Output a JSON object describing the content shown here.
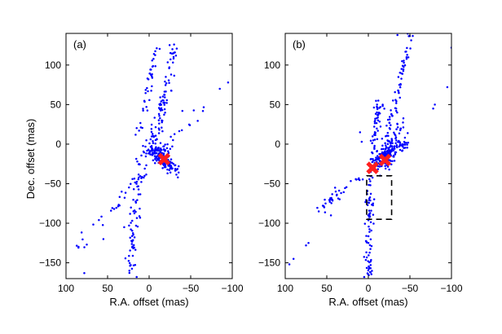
{
  "figure": {
    "xlabel": "R.A. offset (mas)",
    "ylabel": "Dec. offset (mas)"
  },
  "chart_data": [
    {
      "type": "scatter",
      "panel_label": "(a)",
      "xlabel": "R.A. offset (mas)",
      "ylabel": "Dec. offset (mas)",
      "xlim": [
        100,
        -100
      ],
      "ylim": [
        -170,
        140
      ],
      "xticks": [
        100,
        50,
        0,
        -50,
        -100
      ],
      "yticks": [
        100,
        50,
        0,
        -50,
        -100,
        -150
      ],
      "point_color": "#0000ff",
      "marker_color": "#ff1f1f",
      "markers": [
        {
          "x": -18,
          "y": -19
        }
      ],
      "box": null,
      "clusters": [
        {
          "x0": 14,
          "y0": 8,
          "x1": -10,
          "y1": 125,
          "n": 38,
          "spread": 4.5
        },
        {
          "x0": -5,
          "y0": -10,
          "x1": -30,
          "y1": 122,
          "n": 50,
          "spread": 6
        },
        {
          "x0": 10,
          "y0": -15,
          "x1": 25,
          "y1": -165,
          "n": 70,
          "spread": 6
        },
        {
          "x0": 5,
          "y0": -5,
          "x1": -35,
          "y1": -35,
          "n": 70,
          "spread": 4
        },
        {
          "x0": 90,
          "y0": -135,
          "x1": -70,
          "y1": 55,
          "n": 60,
          "spread": 5
        },
        {
          "x0": -5,
          "y0": -5,
          "x1": -25,
          "y1": -25,
          "n": 80,
          "spread": 6
        },
        {
          "x0": 0,
          "y0": 0,
          "x1": -20,
          "y1": 60,
          "n": 40,
          "spread": 8
        }
      ],
      "extra_points": [
        {
          "x": 2,
          "y": 83
        },
        {
          "x": -95,
          "y": 78
        },
        {
          "x": -85,
          "y": 70
        },
        {
          "x": 78,
          "y": -163
        },
        {
          "x": 75,
          "y": -127
        },
        {
          "x": 55,
          "y": -120
        },
        {
          "x": 15,
          "y": -168
        },
        {
          "x": 30,
          "y": -105
        },
        {
          "x": -40,
          "y": 42
        },
        {
          "x": -30,
          "y": 126
        },
        {
          "x": -28,
          "y": 120
        }
      ]
    },
    {
      "type": "scatter",
      "panel_label": "(b)",
      "xlabel": "R.A. offset (mas)",
      "ylabel": "",
      "xlim": [
        100,
        -100
      ],
      "ylim": [
        -170,
        140
      ],
      "xticks": [
        100,
        50,
        0,
        -50,
        -100
      ],
      "yticks": [
        100,
        50,
        0,
        -50,
        -100,
        -150
      ],
      "point_color": "#0000ff",
      "marker_color": "#ff1f1f",
      "markers": [
        {
          "x": -5,
          "y": -30
        },
        {
          "x": -20,
          "y": -20
        }
      ],
      "box": {
        "x0": 2,
        "x1": -28,
        "y0": -40,
        "y1": -95
      },
      "clusters": [
        {
          "x0": -15,
          "y0": -25,
          "x1": -52,
          "y1": 140,
          "n": 75,
          "spread": 4
        },
        {
          "x0": -5,
          "y0": -25,
          "x1": -12,
          "y1": 60,
          "n": 55,
          "spread": 5
        },
        {
          "x0": -2,
          "y0": -35,
          "x1": 0,
          "y1": -170,
          "n": 80,
          "spread": 5
        },
        {
          "x0": -5,
          "y0": -25,
          "x1": -48,
          "y1": 5,
          "n": 70,
          "spread": 4
        },
        {
          "x0": 5,
          "y0": -35,
          "x1": 60,
          "y1": -85,
          "n": 35,
          "spread": 4
        },
        {
          "x0": -10,
          "y0": -25,
          "x1": -30,
          "y1": -10,
          "n": 80,
          "spread": 6
        },
        {
          "x0": -15,
          "y0": -20,
          "x1": -40,
          "y1": 30,
          "n": 40,
          "spread": 6
        }
      ],
      "extra_points": [
        {
          "x": -100,
          "y": 122
        },
        {
          "x": -95,
          "y": 72
        },
        {
          "x": -80,
          "y": 50
        },
        {
          "x": -78,
          "y": 45
        },
        {
          "x": 72,
          "y": -125
        },
        {
          "x": 75,
          "y": -128
        },
        {
          "x": 95,
          "y": -152
        },
        {
          "x": 90,
          "y": -145
        },
        {
          "x": 5,
          "y": -168
        },
        {
          "x": -35,
          "y": 138
        },
        {
          "x": 10,
          "y": 15
        },
        {
          "x": 8,
          "y": 3
        },
        {
          "x": 40,
          "y": -55
        },
        {
          "x": 45,
          "y": -90
        }
      ]
    }
  ]
}
